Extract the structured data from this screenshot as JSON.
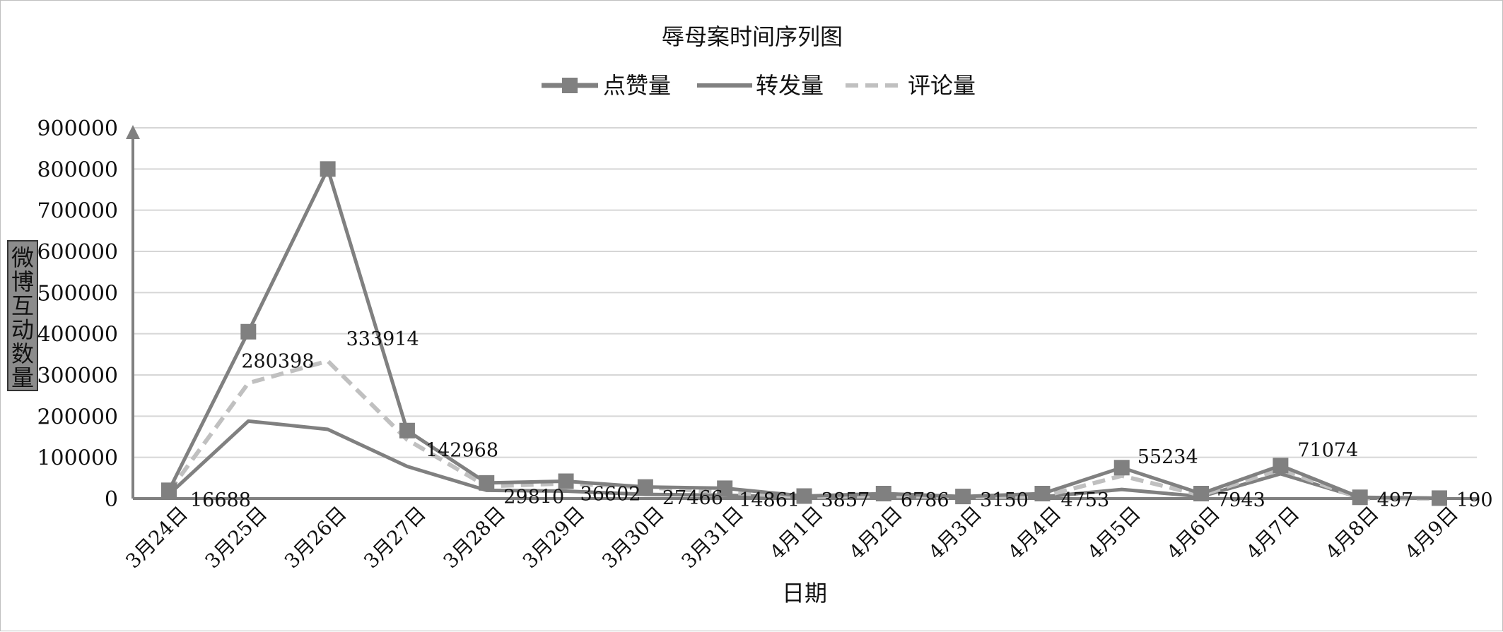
{
  "chart_data": {
    "type": "line",
    "title": "辱母案时间序列图",
    "xlabel": "日期",
    "ylabel": "微博互动数量",
    "categories": [
      "3月24日",
      "3月25日",
      "3月26日",
      "3月27日",
      "3月28日",
      "3月29日",
      "3月30日",
      "3月31日",
      "4月1日",
      "4月2日",
      "4月3日",
      "4月4日",
      "4月5日",
      "4月6日",
      "4月7日",
      "4月8日",
      "4月9日"
    ],
    "ylim": [
      0,
      900000
    ],
    "yticks": [
      "0",
      "100000",
      "200000",
      "300000",
      "400000",
      "500000",
      "600000",
      "700000",
      "800000",
      "900000"
    ],
    "grid": true,
    "legend": "top",
    "series": [
      {
        "name": "点赞量",
        "style": "solid-square-markers",
        "color": "#808080",
        "values": [
          20000,
          405000,
          800000,
          165000,
          38000,
          42000,
          28000,
          25000,
          6000,
          12000,
          5000,
          12000,
          75000,
          12000,
          80000,
          3000,
          1000
        ]
      },
      {
        "name": "转发量",
        "style": "solid",
        "color": "#808080",
        "values": [
          10000,
          188000,
          168000,
          78000,
          20000,
          18000,
          10000,
          8000,
          3000,
          6000,
          2000,
          4000,
          22000,
          5000,
          60000,
          2000,
          500
        ]
      },
      {
        "name": "评论量",
        "style": "dashed",
        "color": "#c0c0c0",
        "values": [
          16688,
          280398,
          333914,
          142968,
          29810,
          36602,
          27466,
          14861,
          3857,
          6786,
          3150,
          4753,
          55234,
          7943,
          71074,
          497,
          190
        ]
      }
    ],
    "data_labels": [
      "16688",
      "280398",
      "333914",
      "142968",
      "29810",
      "36602",
      "27466",
      "14861",
      "3857",
      "6786",
      "3150",
      "4753",
      "55234",
      "7943",
      "71074",
      "497",
      "190"
    ]
  }
}
